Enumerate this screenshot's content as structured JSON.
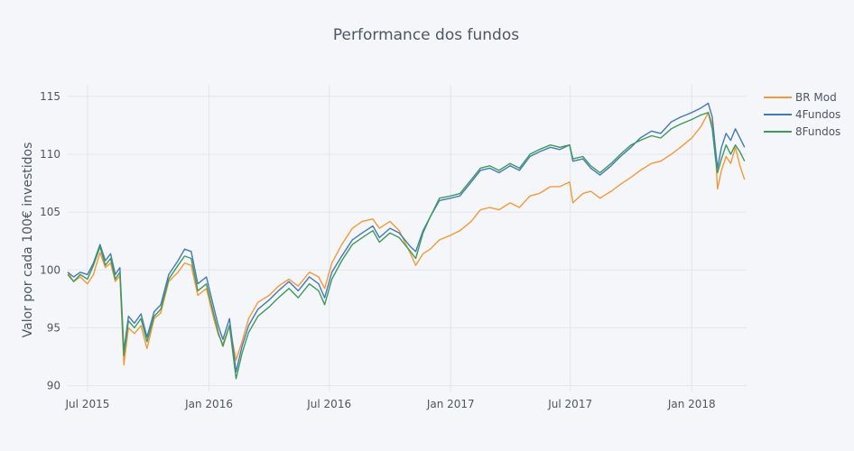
{
  "chart_data": {
    "type": "line",
    "title": "Performance dos fundos",
    "xlabel": "",
    "ylabel": "Valor por cada 100€ investidos",
    "xlim": [
      "2015-06-01",
      "2018-03-25"
    ],
    "ylim": [
      89.5,
      116
    ],
    "x_ticks": [
      {
        "date": "2015-07-01",
        "label": "Jul 2015"
      },
      {
        "date": "2016-01-01",
        "label": "Jan 2016"
      },
      {
        "date": "2016-07-01",
        "label": "Jul 2016"
      },
      {
        "date": "2017-01-01",
        "label": "Jan 2017"
      },
      {
        "date": "2017-07-01",
        "label": "Jul 2017"
      },
      {
        "date": "2018-01-01",
        "label": "Jan 2018"
      }
    ],
    "y_ticks": [
      90,
      95,
      100,
      105,
      110,
      115
    ],
    "grid": true,
    "legend_position": "top-right",
    "series": [
      {
        "name": "BR Mod",
        "color": "#f5983a",
        "points": [
          [
            "2015-06-01",
            99.8
          ],
          [
            "2015-06-10",
            99.0
          ],
          [
            "2015-06-20",
            99.4
          ],
          [
            "2015-07-01",
            98.8
          ],
          [
            "2015-07-10",
            99.6
          ],
          [
            "2015-07-20",
            101.5
          ],
          [
            "2015-07-28",
            100.2
          ],
          [
            "2015-08-05",
            100.6
          ],
          [
            "2015-08-12",
            99.0
          ],
          [
            "2015-08-19",
            99.5
          ],
          [
            "2015-08-25",
            91.8
          ],
          [
            "2015-09-01",
            95.0
          ],
          [
            "2015-09-10",
            94.5
          ],
          [
            "2015-09-20",
            95.2
          ],
          [
            "2015-09-29",
            93.2
          ],
          [
            "2015-10-10",
            95.8
          ],
          [
            "2015-10-20",
            96.3
          ],
          [
            "2015-11-01",
            99.0
          ],
          [
            "2015-11-15",
            99.8
          ],
          [
            "2015-11-25",
            100.6
          ],
          [
            "2015-12-05",
            100.4
          ],
          [
            "2015-12-15",
            97.8
          ],
          [
            "2015-12-28",
            98.4
          ],
          [
            "2016-01-08",
            95.8
          ],
          [
            "2016-01-15",
            94.4
          ],
          [
            "2016-01-22",
            93.6
          ],
          [
            "2016-02-01",
            95.2
          ],
          [
            "2016-02-11",
            92.2
          ],
          [
            "2016-02-20",
            93.8
          ],
          [
            "2016-03-01",
            95.8
          ],
          [
            "2016-03-15",
            97.2
          ],
          [
            "2016-04-01",
            97.8
          ],
          [
            "2016-04-15",
            98.6
          ],
          [
            "2016-05-01",
            99.2
          ],
          [
            "2016-05-15",
            98.6
          ],
          [
            "2016-06-01",
            99.8
          ],
          [
            "2016-06-15",
            99.4
          ],
          [
            "2016-06-24",
            98.4
          ],
          [
            "2016-07-05",
            100.6
          ],
          [
            "2016-07-20",
            102.2
          ],
          [
            "2016-08-05",
            103.6
          ],
          [
            "2016-08-20",
            104.2
          ],
          [
            "2016-09-05",
            104.4
          ],
          [
            "2016-09-15",
            103.6
          ],
          [
            "2016-10-01",
            104.2
          ],
          [
            "2016-10-15",
            103.4
          ],
          [
            "2016-11-01",
            101.4
          ],
          [
            "2016-11-09",
            100.4
          ],
          [
            "2016-11-20",
            101.4
          ],
          [
            "2016-12-01",
            101.8
          ],
          [
            "2016-12-15",
            102.6
          ],
          [
            "2017-01-01",
            103.0
          ],
          [
            "2017-01-15",
            103.4
          ],
          [
            "2017-02-01",
            104.2
          ],
          [
            "2017-02-15",
            105.2
          ],
          [
            "2017-03-01",
            105.4
          ],
          [
            "2017-03-15",
            105.2
          ],
          [
            "2017-04-01",
            105.8
          ],
          [
            "2017-04-15",
            105.4
          ],
          [
            "2017-05-01",
            106.4
          ],
          [
            "2017-05-15",
            106.6
          ],
          [
            "2017-06-01",
            107.2
          ],
          [
            "2017-06-15",
            107.2
          ],
          [
            "2017-06-30",
            107.6
          ],
          [
            "2017-07-05",
            105.8
          ],
          [
            "2017-07-20",
            106.6
          ],
          [
            "2017-08-01",
            106.8
          ],
          [
            "2017-08-15",
            106.2
          ],
          [
            "2017-09-01",
            106.8
          ],
          [
            "2017-09-15",
            107.4
          ],
          [
            "2017-10-01",
            108.0
          ],
          [
            "2017-10-15",
            108.6
          ],
          [
            "2017-11-01",
            109.2
          ],
          [
            "2017-11-15",
            109.4
          ],
          [
            "2017-12-01",
            110.0
          ],
          [
            "2017-12-15",
            110.6
          ],
          [
            "2018-01-01",
            111.4
          ],
          [
            "2018-01-15",
            112.4
          ],
          [
            "2018-01-26",
            113.6
          ],
          [
            "2018-02-01",
            112.6
          ],
          [
            "2018-02-06",
            110.0
          ],
          [
            "2018-02-09",
            107.0
          ],
          [
            "2018-02-15",
            108.6
          ],
          [
            "2018-02-22",
            109.8
          ],
          [
            "2018-03-01",
            109.2
          ],
          [
            "2018-03-08",
            110.6
          ],
          [
            "2018-03-15",
            109.0
          ],
          [
            "2018-03-22",
            107.8
          ]
        ]
      },
      {
        "name": "4Fundos",
        "color": "#4479b8",
        "points": [
          [
            "2015-06-01",
            99.8
          ],
          [
            "2015-06-10",
            99.4
          ],
          [
            "2015-06-20",
            99.8
          ],
          [
            "2015-07-01",
            99.6
          ],
          [
            "2015-07-10",
            100.6
          ],
          [
            "2015-07-20",
            102.2
          ],
          [
            "2015-07-28",
            100.8
          ],
          [
            "2015-08-05",
            101.4
          ],
          [
            "2015-08-12",
            99.6
          ],
          [
            "2015-08-19",
            100.2
          ],
          [
            "2015-08-25",
            93.0
          ],
          [
            "2015-09-01",
            96.0
          ],
          [
            "2015-09-10",
            95.4
          ],
          [
            "2015-09-20",
            96.2
          ],
          [
            "2015-09-29",
            94.2
          ],
          [
            "2015-10-10",
            96.4
          ],
          [
            "2015-10-20",
            97.0
          ],
          [
            "2015-11-01",
            99.6
          ],
          [
            "2015-11-15",
            100.8
          ],
          [
            "2015-11-25",
            101.8
          ],
          [
            "2015-12-05",
            101.6
          ],
          [
            "2015-12-15",
            98.8
          ],
          [
            "2015-12-28",
            99.4
          ],
          [
            "2016-01-08",
            96.8
          ],
          [
            "2016-01-15",
            95.2
          ],
          [
            "2016-01-22",
            94.0
          ],
          [
            "2016-02-01",
            95.8
          ],
          [
            "2016-02-11",
            91.2
          ],
          [
            "2016-02-20",
            93.4
          ],
          [
            "2016-03-01",
            95.2
          ],
          [
            "2016-03-15",
            96.6
          ],
          [
            "2016-04-01",
            97.4
          ],
          [
            "2016-04-15",
            98.2
          ],
          [
            "2016-05-01",
            99.0
          ],
          [
            "2016-05-15",
            98.2
          ],
          [
            "2016-06-01",
            99.4
          ],
          [
            "2016-06-15",
            98.8
          ],
          [
            "2016-06-24",
            97.6
          ],
          [
            "2016-07-05",
            99.8
          ],
          [
            "2016-07-20",
            101.2
          ],
          [
            "2016-08-05",
            102.6
          ],
          [
            "2016-08-20",
            103.2
          ],
          [
            "2016-09-05",
            103.8
          ],
          [
            "2016-09-15",
            102.8
          ],
          [
            "2016-10-01",
            103.6
          ],
          [
            "2016-10-15",
            103.2
          ],
          [
            "2016-11-01",
            102.0
          ],
          [
            "2016-11-09",
            101.6
          ],
          [
            "2016-11-20",
            103.4
          ],
          [
            "2016-12-01",
            104.6
          ],
          [
            "2016-12-15",
            106.0
          ],
          [
            "2017-01-01",
            106.2
          ],
          [
            "2017-01-15",
            106.4
          ],
          [
            "2017-02-01",
            107.6
          ],
          [
            "2017-02-15",
            108.6
          ],
          [
            "2017-03-01",
            108.8
          ],
          [
            "2017-03-15",
            108.4
          ],
          [
            "2017-04-01",
            109.0
          ],
          [
            "2017-04-15",
            108.6
          ],
          [
            "2017-05-01",
            109.8
          ],
          [
            "2017-05-15",
            110.2
          ],
          [
            "2017-06-01",
            110.6
          ],
          [
            "2017-06-15",
            110.4
          ],
          [
            "2017-06-30",
            110.8
          ],
          [
            "2017-07-05",
            109.4
          ],
          [
            "2017-07-20",
            109.6
          ],
          [
            "2017-08-01",
            108.8
          ],
          [
            "2017-08-15",
            108.2
          ],
          [
            "2017-09-01",
            109.0
          ],
          [
            "2017-09-15",
            109.8
          ],
          [
            "2017-10-01",
            110.6
          ],
          [
            "2017-10-15",
            111.4
          ],
          [
            "2017-11-01",
            112.0
          ],
          [
            "2017-11-15",
            111.8
          ],
          [
            "2017-12-01",
            112.8
          ],
          [
            "2017-12-15",
            113.2
          ],
          [
            "2018-01-01",
            113.6
          ],
          [
            "2018-01-15",
            114.0
          ],
          [
            "2018-01-26",
            114.4
          ],
          [
            "2018-02-01",
            113.2
          ],
          [
            "2018-02-06",
            110.4
          ],
          [
            "2018-02-09",
            108.8
          ],
          [
            "2018-02-15",
            110.6
          ],
          [
            "2018-02-22",
            111.8
          ],
          [
            "2018-03-01",
            111.2
          ],
          [
            "2018-03-08",
            112.2
          ],
          [
            "2018-03-15",
            111.4
          ],
          [
            "2018-03-22",
            110.6
          ]
        ]
      },
      {
        "name": "8Fundos",
        "color": "#3d9b5c",
        "points": [
          [
            "2015-06-01",
            99.6
          ],
          [
            "2015-06-10",
            99.0
          ],
          [
            "2015-06-20",
            99.6
          ],
          [
            "2015-07-01",
            99.2
          ],
          [
            "2015-07-10",
            100.4
          ],
          [
            "2015-07-20",
            102.0
          ],
          [
            "2015-07-28",
            100.4
          ],
          [
            "2015-08-05",
            101.0
          ],
          [
            "2015-08-12",
            99.2
          ],
          [
            "2015-08-19",
            99.8
          ],
          [
            "2015-08-25",
            92.6
          ],
          [
            "2015-09-01",
            95.6
          ],
          [
            "2015-09-10",
            95.0
          ],
          [
            "2015-09-20",
            95.8
          ],
          [
            "2015-09-29",
            93.8
          ],
          [
            "2015-10-10",
            96.0
          ],
          [
            "2015-10-20",
            96.6
          ],
          [
            "2015-11-01",
            99.2
          ],
          [
            "2015-11-15",
            100.4
          ],
          [
            "2015-11-25",
            101.2
          ],
          [
            "2015-12-05",
            101.0
          ],
          [
            "2015-12-15",
            98.2
          ],
          [
            "2015-12-28",
            98.8
          ],
          [
            "2016-01-08",
            96.2
          ],
          [
            "2016-01-15",
            94.6
          ],
          [
            "2016-01-22",
            93.4
          ],
          [
            "2016-02-01",
            95.2
          ],
          [
            "2016-02-11",
            90.6
          ],
          [
            "2016-02-20",
            92.8
          ],
          [
            "2016-03-01",
            94.6
          ],
          [
            "2016-03-15",
            96.0
          ],
          [
            "2016-04-01",
            96.8
          ],
          [
            "2016-04-15",
            97.6
          ],
          [
            "2016-05-01",
            98.4
          ],
          [
            "2016-05-15",
            97.6
          ],
          [
            "2016-06-01",
            98.8
          ],
          [
            "2016-06-15",
            98.2
          ],
          [
            "2016-06-24",
            97.0
          ],
          [
            "2016-07-05",
            99.2
          ],
          [
            "2016-07-20",
            100.8
          ],
          [
            "2016-08-05",
            102.2
          ],
          [
            "2016-08-20",
            102.8
          ],
          [
            "2016-09-05",
            103.4
          ],
          [
            "2016-09-15",
            102.4
          ],
          [
            "2016-10-01",
            103.2
          ],
          [
            "2016-10-15",
            102.8
          ],
          [
            "2016-11-01",
            101.6
          ],
          [
            "2016-11-09",
            101.0
          ],
          [
            "2016-11-20",
            103.2
          ],
          [
            "2016-12-01",
            104.6
          ],
          [
            "2016-12-15",
            106.2
          ],
          [
            "2017-01-01",
            106.4
          ],
          [
            "2017-01-15",
            106.6
          ],
          [
            "2017-02-01",
            107.8
          ],
          [
            "2017-02-15",
            108.8
          ],
          [
            "2017-03-01",
            109.0
          ],
          [
            "2017-03-15",
            108.6
          ],
          [
            "2017-04-01",
            109.2
          ],
          [
            "2017-04-15",
            108.8
          ],
          [
            "2017-05-01",
            110.0
          ],
          [
            "2017-05-15",
            110.4
          ],
          [
            "2017-06-01",
            110.8
          ],
          [
            "2017-06-15",
            110.6
          ],
          [
            "2017-06-30",
            110.8
          ],
          [
            "2017-07-05",
            109.6
          ],
          [
            "2017-07-20",
            109.8
          ],
          [
            "2017-08-01",
            109.0
          ],
          [
            "2017-08-15",
            108.4
          ],
          [
            "2017-09-01",
            109.2
          ],
          [
            "2017-09-15",
            110.0
          ],
          [
            "2017-10-01",
            110.8
          ],
          [
            "2017-10-15",
            111.2
          ],
          [
            "2017-11-01",
            111.6
          ],
          [
            "2017-11-15",
            111.4
          ],
          [
            "2017-12-01",
            112.2
          ],
          [
            "2017-12-15",
            112.6
          ],
          [
            "2018-01-01",
            113.0
          ],
          [
            "2018-01-15",
            113.4
          ],
          [
            "2018-01-26",
            113.6
          ],
          [
            "2018-02-01",
            112.2
          ],
          [
            "2018-02-06",
            109.6
          ],
          [
            "2018-02-09",
            108.4
          ],
          [
            "2018-02-15",
            109.6
          ],
          [
            "2018-02-22",
            110.8
          ],
          [
            "2018-03-01",
            110.0
          ],
          [
            "2018-03-08",
            110.8
          ],
          [
            "2018-03-15",
            110.2
          ],
          [
            "2018-03-22",
            109.4
          ]
        ]
      }
    ]
  }
}
